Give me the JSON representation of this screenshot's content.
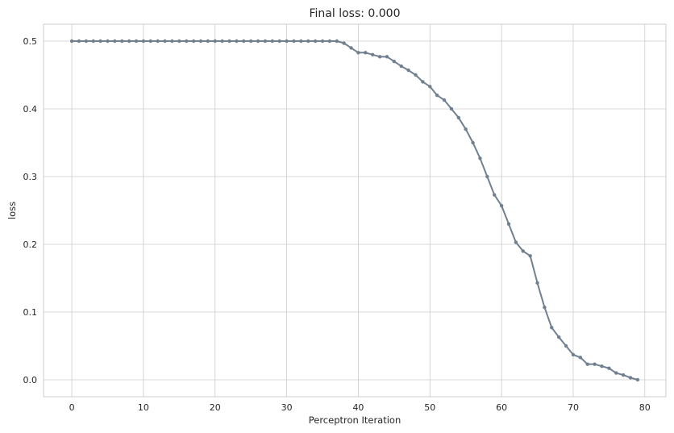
{
  "chart_data": {
    "type": "line",
    "title": "Final loss: 0.000",
    "xlabel": "Perceptron Iteration",
    "ylabel": "loss",
    "xlim": [
      -3.95,
      82.95
    ],
    "ylim": [
      -0.025,
      0.525
    ],
    "xticks": [
      0,
      10,
      20,
      30,
      40,
      50,
      60,
      70,
      80
    ],
    "yticks": [
      0.0,
      0.1,
      0.2,
      0.3,
      0.4,
      0.5
    ],
    "ytick_labels": [
      "0.0",
      "0.1",
      "0.2",
      "0.3",
      "0.4",
      "0.5"
    ],
    "grid": true,
    "series": [
      {
        "color": "#708090",
        "marker": "circle",
        "x": [
          0,
          1,
          2,
          3,
          4,
          5,
          6,
          7,
          8,
          9,
          10,
          11,
          12,
          13,
          14,
          15,
          16,
          17,
          18,
          19,
          20,
          21,
          22,
          23,
          24,
          25,
          26,
          27,
          28,
          29,
          30,
          31,
          32,
          33,
          34,
          35,
          36,
          37,
          38,
          39,
          40,
          41,
          42,
          43,
          44,
          45,
          46,
          47,
          48,
          49,
          50,
          51,
          52,
          53,
          54,
          55,
          56,
          57,
          58,
          59,
          60,
          61,
          62,
          63,
          64,
          65,
          66,
          67,
          68,
          69,
          70,
          71,
          72,
          73,
          74,
          75,
          76,
          77,
          78,
          79
        ],
        "y": [
          0.5,
          0.5,
          0.5,
          0.5,
          0.5,
          0.5,
          0.5,
          0.5,
          0.5,
          0.5,
          0.5,
          0.5,
          0.5,
          0.5,
          0.5,
          0.5,
          0.5,
          0.5,
          0.5,
          0.5,
          0.5,
          0.5,
          0.5,
          0.5,
          0.5,
          0.5,
          0.5,
          0.5,
          0.5,
          0.5,
          0.5,
          0.5,
          0.5,
          0.5,
          0.5,
          0.5,
          0.5,
          0.5,
          0.497,
          0.49,
          0.483,
          0.483,
          0.48,
          0.477,
          0.477,
          0.47,
          0.463,
          0.457,
          0.45,
          0.44,
          0.433,
          0.42,
          0.413,
          0.4,
          0.387,
          0.37,
          0.35,
          0.327,
          0.3,
          0.273,
          0.257,
          0.23,
          0.203,
          0.19,
          0.183,
          0.143,
          0.107,
          0.077,
          0.063,
          0.05,
          0.037,
          0.033,
          0.023,
          0.023,
          0.02,
          0.017,
          0.01,
          0.007,
          0.003,
          0.0
        ]
      }
    ]
  }
}
